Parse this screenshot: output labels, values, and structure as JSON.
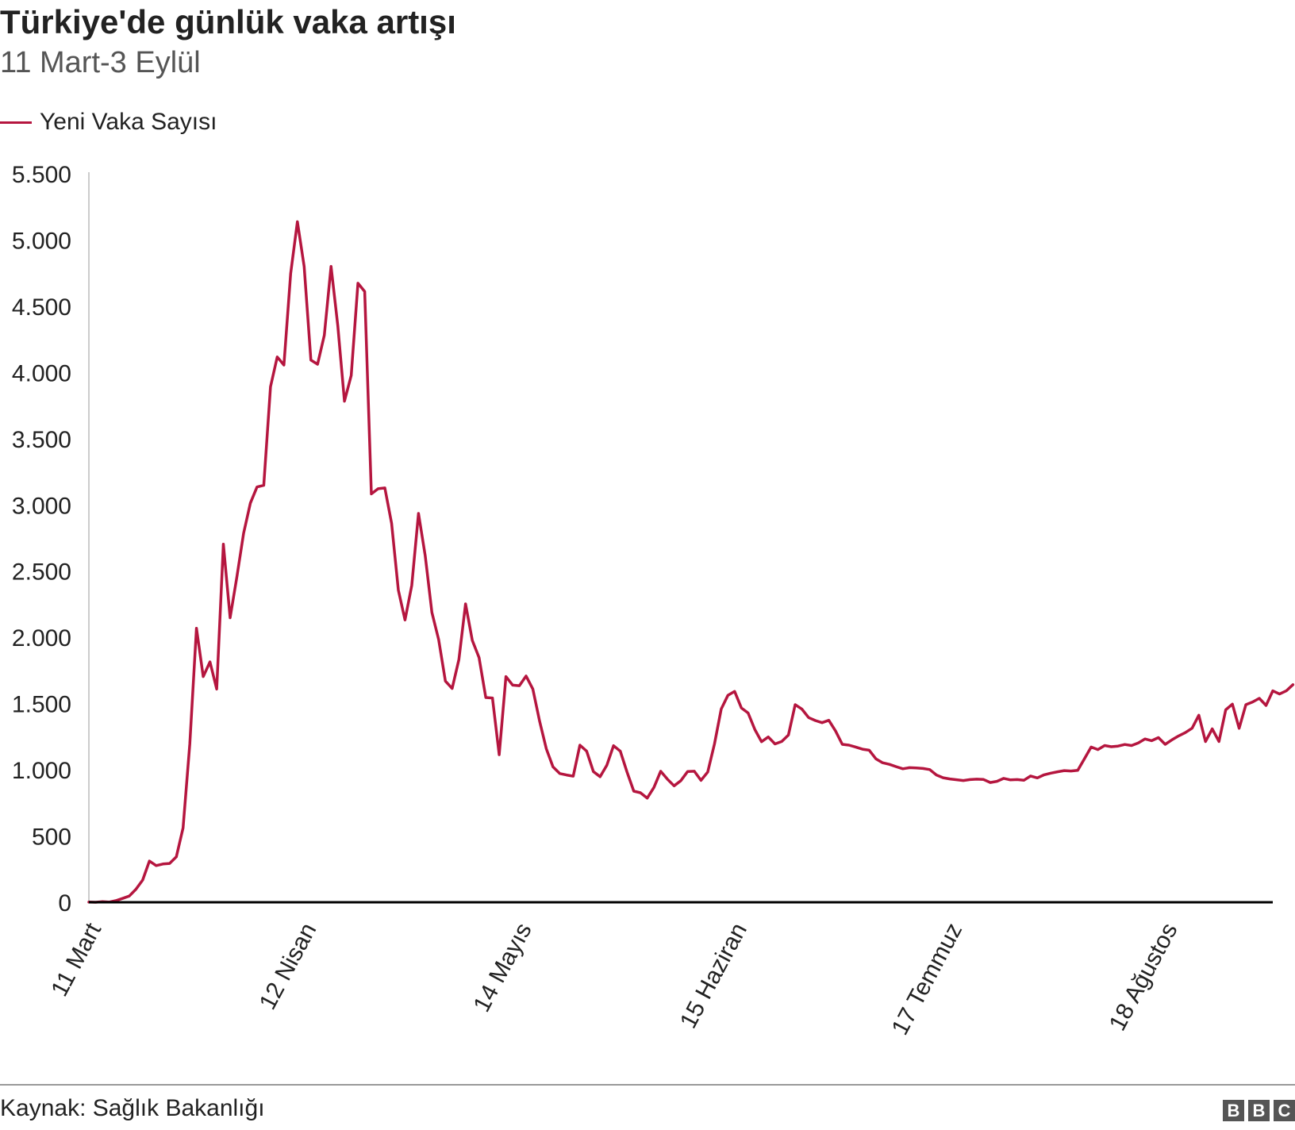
{
  "title": "Türkiye'de günlük vaka artışı",
  "subtitle": "11 Mart-3 Eylül",
  "source": "Kaynak: Sağlık Bakanlığı",
  "logo": "BBC",
  "colors": {
    "series": "#b5163f",
    "axis": "#000000",
    "text": "#222222",
    "subtitle": "#555555"
  },
  "chart_data": {
    "type": "line",
    "title": "Türkiye'de günlük vaka artışı",
    "subtitle": "11 Mart-3 Eylül",
    "xlabel": "",
    "ylabel": "",
    "ylim": [
      0,
      5500
    ],
    "yticks": [
      0,
      500,
      1000,
      1500,
      2000,
      2500,
      3000,
      3500,
      4000,
      4500,
      5000,
      5500
    ],
    "ytick_labels": [
      "0",
      "500",
      "1.000",
      "1.500",
      "2.000",
      "2.500",
      "3.000",
      "3.500",
      "4.000",
      "4.500",
      "5.000",
      "5.500"
    ],
    "xtick_labels": [
      "11 Mart",
      "12 Nisan",
      "14 Mayıs",
      "15 Haziran",
      "17 Temmuz",
      "18 Ağustos"
    ],
    "xtick_dates": [
      "2020-03-11",
      "2020-04-12",
      "2020-05-14",
      "2020-06-15",
      "2020-07-17",
      "2020-08-18"
    ],
    "x_start": "2020-03-11",
    "x_end": "2020-09-03",
    "grid": false,
    "legend_position": "top-left",
    "series": [
      {
        "name": "Yeni Vaka Sayısı",
        "values": [
          1,
          0,
          4,
          1,
          12,
          29,
          47,
          98,
          168,
          311,
          277,
          289,
          293,
          343,
          561,
          1196,
          2069,
          1704,
          1815,
          1610,
          2704,
          2148,
          2456,
          2786,
          3013,
          3135,
          3148,
          3892,
          4117,
          4056,
          4747,
          5138,
          4801,
          4093,
          4062,
          4281,
          4801,
          4353,
          3783,
          3977,
          4674,
          4611,
          3083,
          3122,
          3128,
          2861,
          2357,
          2131,
          2392,
          2936,
          2615,
          2188,
          1983,
          1670,
          1614,
          1832,
          2253,
          1977,
          1848,
          1546,
          1542,
          1114,
          1704,
          1639,
          1635,
          1708,
          1610,
          1368,
          1158,
          1022,
          972,
          961,
          952,
          1186,
          1141,
          987,
          948,
          1035,
          1182,
          1141,
          983,
          839,
          827,
          786,
          867,
          989,
          930,
          879,
          918,
          987,
          989,
          920,
          983,
          1195,
          1459,
          1562,
          1592,
          1467,
          1429,
          1304,
          1212,
          1248,
          1195,
          1214,
          1263,
          1492,
          1458,
          1394,
          1372,
          1356,
          1374,
          1293,
          1192,
          1186,
          1172,
          1156,
          1148,
          1083,
          1053,
          1041,
          1024,
          1008,
          1016,
          1014,
          1010,
          1002,
          961,
          940,
          931,
          925,
          919,
          926,
          929,
          927,
          904,
          913,
          935,
          924,
          926,
          921,
          953,
          939,
          962,
          975,
          985,
          994,
          991,
          996,
          1083,
          1172,
          1153,
          1183,
          1174,
          1179,
          1191,
          1183,
          1203,
          1233,
          1220,
          1243,
          1192,
          1226,
          1256,
          1281,
          1314,
          1412,
          1213,
          1309,
          1214,
          1453,
          1496,
          1313,
          1492,
          1512,
          1540,
          1486,
          1596,
          1572,
          1596,
          1643
        ]
      }
    ]
  }
}
